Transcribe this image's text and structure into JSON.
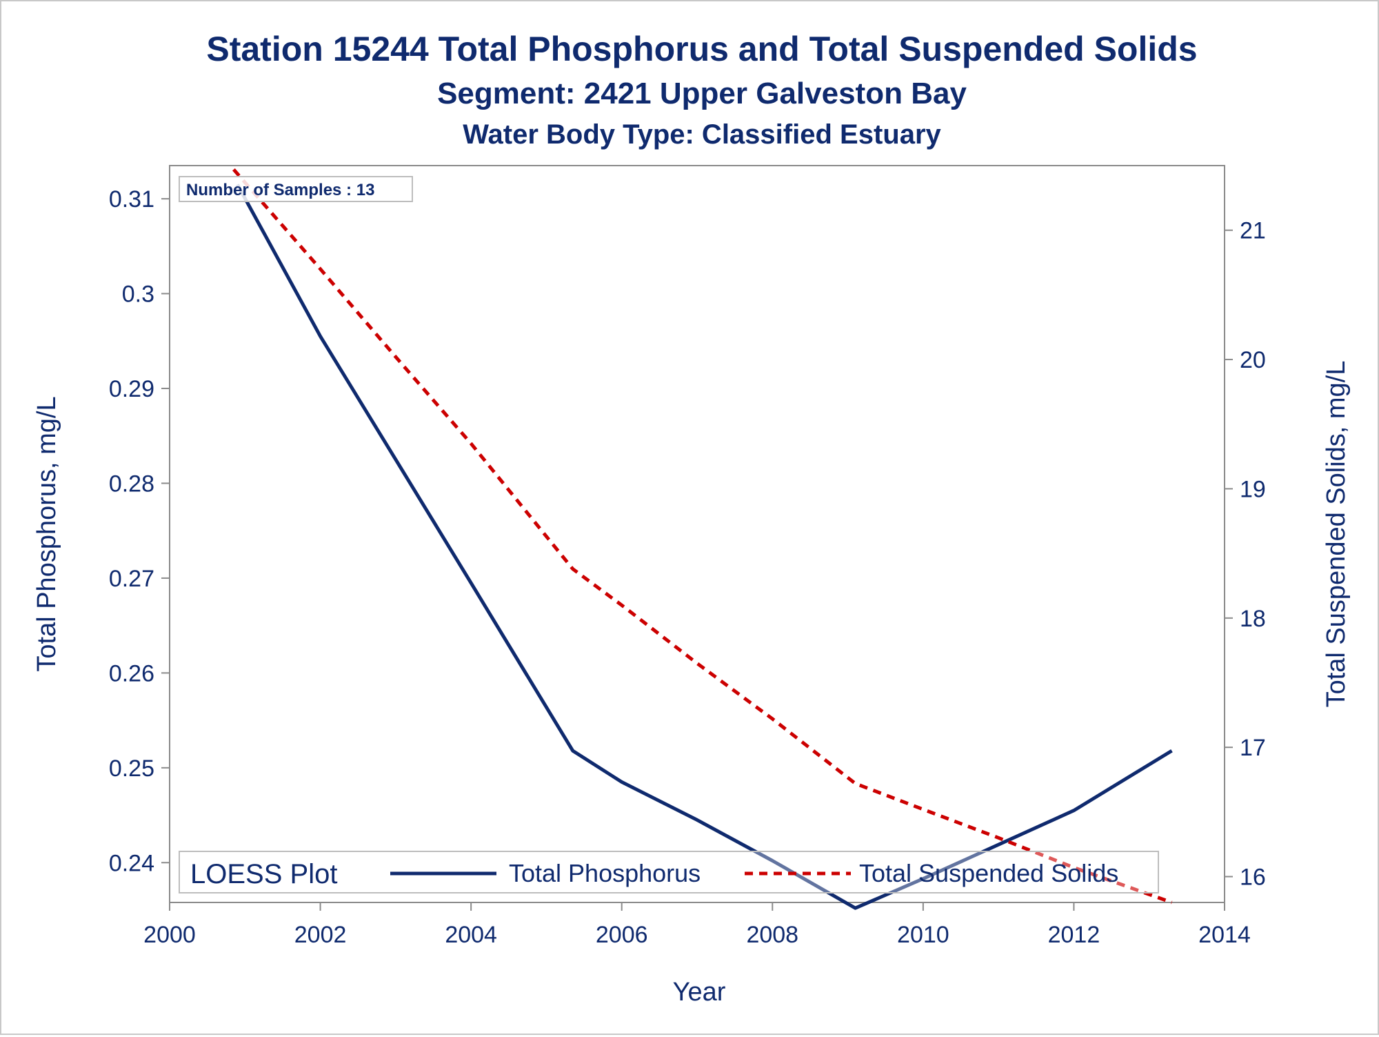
{
  "chart_data": {
    "type": "line",
    "title": "Station 15244  Total Phosphorus and Total Suspended Solids",
    "subtitle": "Segment: 2421  Upper Galveston Bay",
    "subtitle2": "Water Body Type: Classified Estuary",
    "xlabel": "Year",
    "ylabel": "Total Phosphorus, mg/L",
    "y2label": "Total Suspended Solids, mg/L",
    "xlim": [
      2000,
      2014
    ],
    "ylim": [
      0.2358,
      0.3135
    ],
    "y2lim": [
      15.8,
      21.5
    ],
    "x_ticks": [
      "2000",
      "2002",
      "2004",
      "2006",
      "2008",
      "2010",
      "2012",
      "2014"
    ],
    "y_ticks": [
      "0.24",
      "0.25",
      "0.26",
      "0.27",
      "0.28",
      "0.29",
      "0.3",
      "0.31"
    ],
    "y2_ticks": [
      "16",
      "17",
      "18",
      "19",
      "20",
      "21"
    ],
    "annotation": "Number of Samples : 13",
    "legend_title": "LOESS Plot",
    "legend_position": "bottom-inside",
    "grid": false,
    "series": [
      {
        "name": "Total Phosphorus",
        "axis": "left",
        "style": "solid",
        "color": "#0f2a6e",
        "x": [
          2000.9,
          2002.0,
          2003.0,
          2004.0,
          2005.35,
          2006.0,
          2007.0,
          2008.0,
          2009.1,
          2010.0,
          2011.0,
          2012.0,
          2013.3
        ],
        "y": [
          0.3115,
          0.2955,
          0.2825,
          0.2695,
          0.2518,
          0.2485,
          0.2445,
          0.2402,
          0.2352,
          0.2383,
          0.2419,
          0.2455,
          0.2518
        ]
      },
      {
        "name": "Total Suspended Solids",
        "axis": "right",
        "style": "dashed",
        "color": "#cc0000",
        "x": [
          2000.85,
          2002.0,
          2003.0,
          2004.0,
          2005.35,
          2006.0,
          2007.0,
          2008.0,
          2009.1,
          2010.0,
          2011.0,
          2012.0,
          2013.3
        ],
        "y": [
          21.47,
          20.7,
          20.02,
          19.35,
          18.38,
          18.1,
          17.65,
          17.22,
          16.72,
          16.52,
          16.3,
          16.07,
          15.8
        ]
      }
    ]
  }
}
